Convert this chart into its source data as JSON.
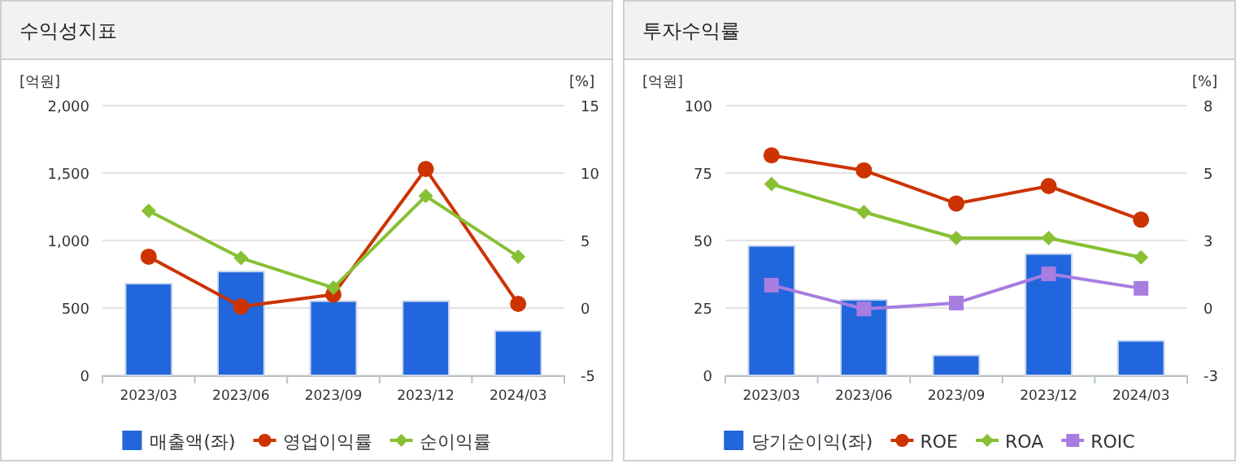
{
  "chart_data": [
    {
      "type": "bar",
      "title": "수익성지표",
      "ylabel": "[억원]",
      "y2label": "[%]",
      "categories": [
        "2023/03",
        "2023/06",
        "2023/09",
        "2023/12",
        "2024/03"
      ],
      "series": [
        {
          "name": "매출액(좌)",
          "color": "#2266dd",
          "values": [
            680,
            770,
            550,
            550,
            330
          ]
        },
        {
          "name": "영업이익률",
          "type": "line",
          "axis": "y2",
          "marker": "circle",
          "color": "#cc3300",
          "values": [
            3.8,
            0.1,
            1.0,
            10.3,
            0.3
          ]
        },
        {
          "name": "순이익률",
          "type": "line",
          "axis": "y2",
          "marker": "diamond",
          "color": "#88c034",
          "values": [
            7.2,
            3.7,
            1.5,
            8.3,
            3.8
          ]
        }
      ],
      "ylim": [
        0,
        2000
      ],
      "yticks": [
        0,
        {
          "value": 500,
          "label": "500"
        },
        {
          "value": 1000,
          "label": "1,000"
        },
        {
          "value": 1500,
          "label": "1,500"
        },
        {
          "value": 2000,
          "label": "2,000"
        }
      ],
      "y2lim": [
        -5,
        15
      ],
      "y2ticks": [
        -5,
        0,
        5,
        10,
        15
      ],
      "grid": "y",
      "legend": "bottom"
    },
    {
      "type": "bar",
      "title": "투자수익률",
      "ylabel": "[억원]",
      "y2label": "[%]",
      "categories": [
        "2023/03",
        "2023/06",
        "2023/09",
        "2023/12",
        "2024/03"
      ],
      "series": [
        {
          "name": "당기순이익(좌)",
          "color": "#2266dd",
          "values": [
            48,
            28,
            7.4,
            45,
            12.8
          ]
        },
        {
          "name": "ROE",
          "type": "line",
          "axis": "y2",
          "marker": "circle",
          "color": "#cc3300",
          "values": [
            5.97,
            5.36,
            4.01,
            4.72,
            3.35
          ]
        },
        {
          "name": "ROA",
          "type": "line",
          "axis": "y2",
          "marker": "diamond",
          "color": "#88c034",
          "values": [
            4.8,
            3.66,
            2.6,
            2.6,
            1.81
          ]
        },
        {
          "name": "ROIC",
          "type": "line",
          "axis": "y2",
          "marker": "square",
          "color": "#a77de0",
          "values": [
            0.68,
            -0.29,
            -0.05,
            1.14,
            0.55
          ]
        }
      ],
      "ylim": [
        0,
        100
      ],
      "yticks": [
        0,
        25,
        50,
        75,
        100
      ],
      "y2lim": [
        -3,
        8
      ],
      "y2ticks": [
        -3,
        {
          "value": -0.25,
          "label": "0"
        },
        {
          "value": 2.5,
          "label": "3"
        },
        {
          "value": 5.25,
          "label": "5"
        },
        8
      ],
      "grid": "y",
      "legend": "bottom"
    }
  ]
}
